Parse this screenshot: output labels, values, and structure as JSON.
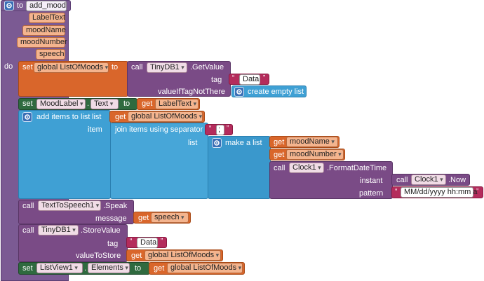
{
  "procedure": {
    "to_label": "to",
    "name": "add_mood",
    "params": [
      "LabelText",
      "moodName",
      "moodNumber",
      "speech"
    ],
    "do_label": "do"
  },
  "block1": {
    "set": "set",
    "var": "global ListOfMoods",
    "to": "to",
    "call": "call",
    "component": "TinyDB1",
    "method": ".GetValue",
    "tag_label": "tag",
    "tag_value": "Data",
    "if_label": "valueIfTagNotThere",
    "empty_list": "create empty list"
  },
  "block2": {
    "set": "set",
    "component": "MoodLabel",
    "prop": "Text",
    "to": "to",
    "get": "get",
    "var": "LabelText"
  },
  "block3": {
    "title": "add items to list",
    "list_label": "list",
    "get": "get",
    "list_var": "global ListOfMoods",
    "item_label": "item",
    "join_label": "join items using separator",
    "separator": ";",
    "join_list_label": "list",
    "make_list": "make a list",
    "get1": "get",
    "var1": "moodName",
    "get2": "get",
    "var2": "moodNumber",
    "call": "call",
    "clock": "Clock1",
    "format": ".FormatDateTime",
    "instant_label": "instant",
    "call2": "call",
    "clock2": "Clock1",
    "now": ".Now",
    "pattern_label": "pattern",
    "pattern": "MM/dd/yyyy hh:mm a"
  },
  "block4": {
    "call": "call",
    "component": "TextToSpeech1",
    "method": ".Speak",
    "message_label": "message",
    "get": "get",
    "var": "speech"
  },
  "block5": {
    "call": "call",
    "component": "TinyDB1",
    "method": ".StoreValue",
    "tag_label": "tag",
    "tag_value": "Data",
    "value_label": "valueToStore",
    "get": "get",
    "var": "global ListOfMoods"
  },
  "block6": {
    "set": "set",
    "component": "ListView1",
    "prop": "Elements",
    "to": "to",
    "get": "get",
    "var": "global ListOfMoods"
  },
  "colors": {
    "procedure": "#7b5a93",
    "variables": "#d9662b",
    "tinydb": "#7a4b86",
    "lists": "#3fa0d4",
    "text": "#b42c5c",
    "setter": "#2f6a3f"
  }
}
